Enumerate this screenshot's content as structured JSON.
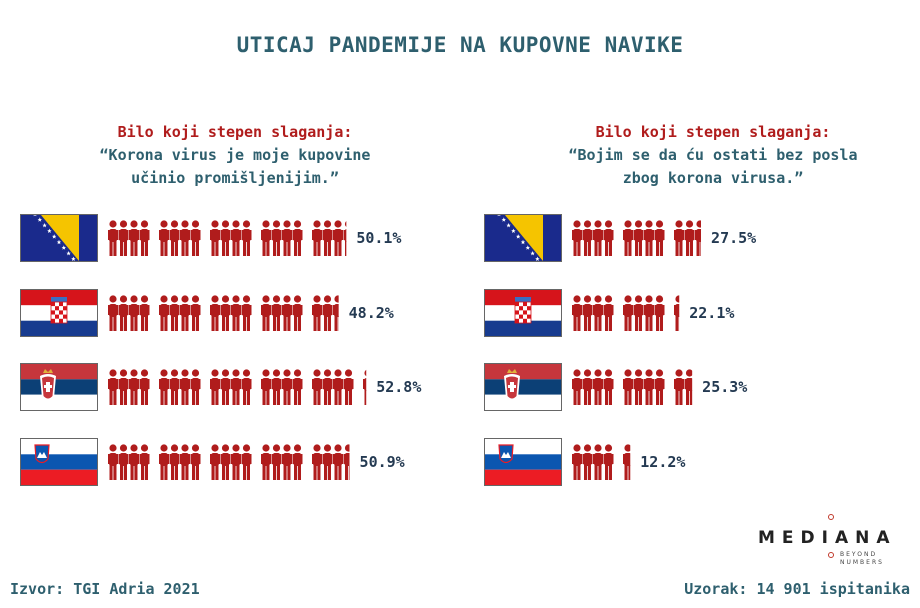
{
  "title": "UTICAJ PANDEMIJE NA KUPOVNE NAVIKE",
  "panels": [
    {
      "header_a": "Bilo koji stepen slaganja:",
      "header_q1": "“Korona virus je moje kupovine",
      "header_q2": "učinio promišljenijim.”"
    },
    {
      "header_a": "Bilo koji stepen slaganja:",
      "header_q1": "“Bojim se da ću ostati bez posla",
      "header_q2": "zbog korona virusa.”"
    }
  ],
  "chart_data": [
    {
      "type": "bar",
      "categories": [
        "Bosna i Hercegovina",
        "Hrvatska",
        "Srbija",
        "Slovenija"
      ],
      "values": [
        50.1,
        48.2,
        52.8,
        50.9
      ],
      "labels": [
        "50.1%",
        "48.2%",
        "52.8%",
        "50.9%"
      ],
      "unit": "%"
    },
    {
      "type": "bar",
      "categories": [
        "Bosna i Hercegovina",
        "Hrvatska",
        "Srbija",
        "Slovenija"
      ],
      "values": [
        27.5,
        22.1,
        25.3,
        12.2
      ],
      "labels": [
        "27.5%",
        "22.1%",
        "25.3%",
        "12.2%"
      ],
      "unit": "%"
    }
  ],
  "colors": {
    "icon": "#b01c1c",
    "title": "#2e5f6e",
    "label": "#243a52"
  },
  "footer": {
    "source": "Izvor: TGI Adria 2021",
    "sample": "Uzorak: 14 901 ispitanika"
  },
  "logo": {
    "brand": "MEDIANA",
    "tag1": "BEYOND",
    "tag2": "NUMBERS"
  }
}
